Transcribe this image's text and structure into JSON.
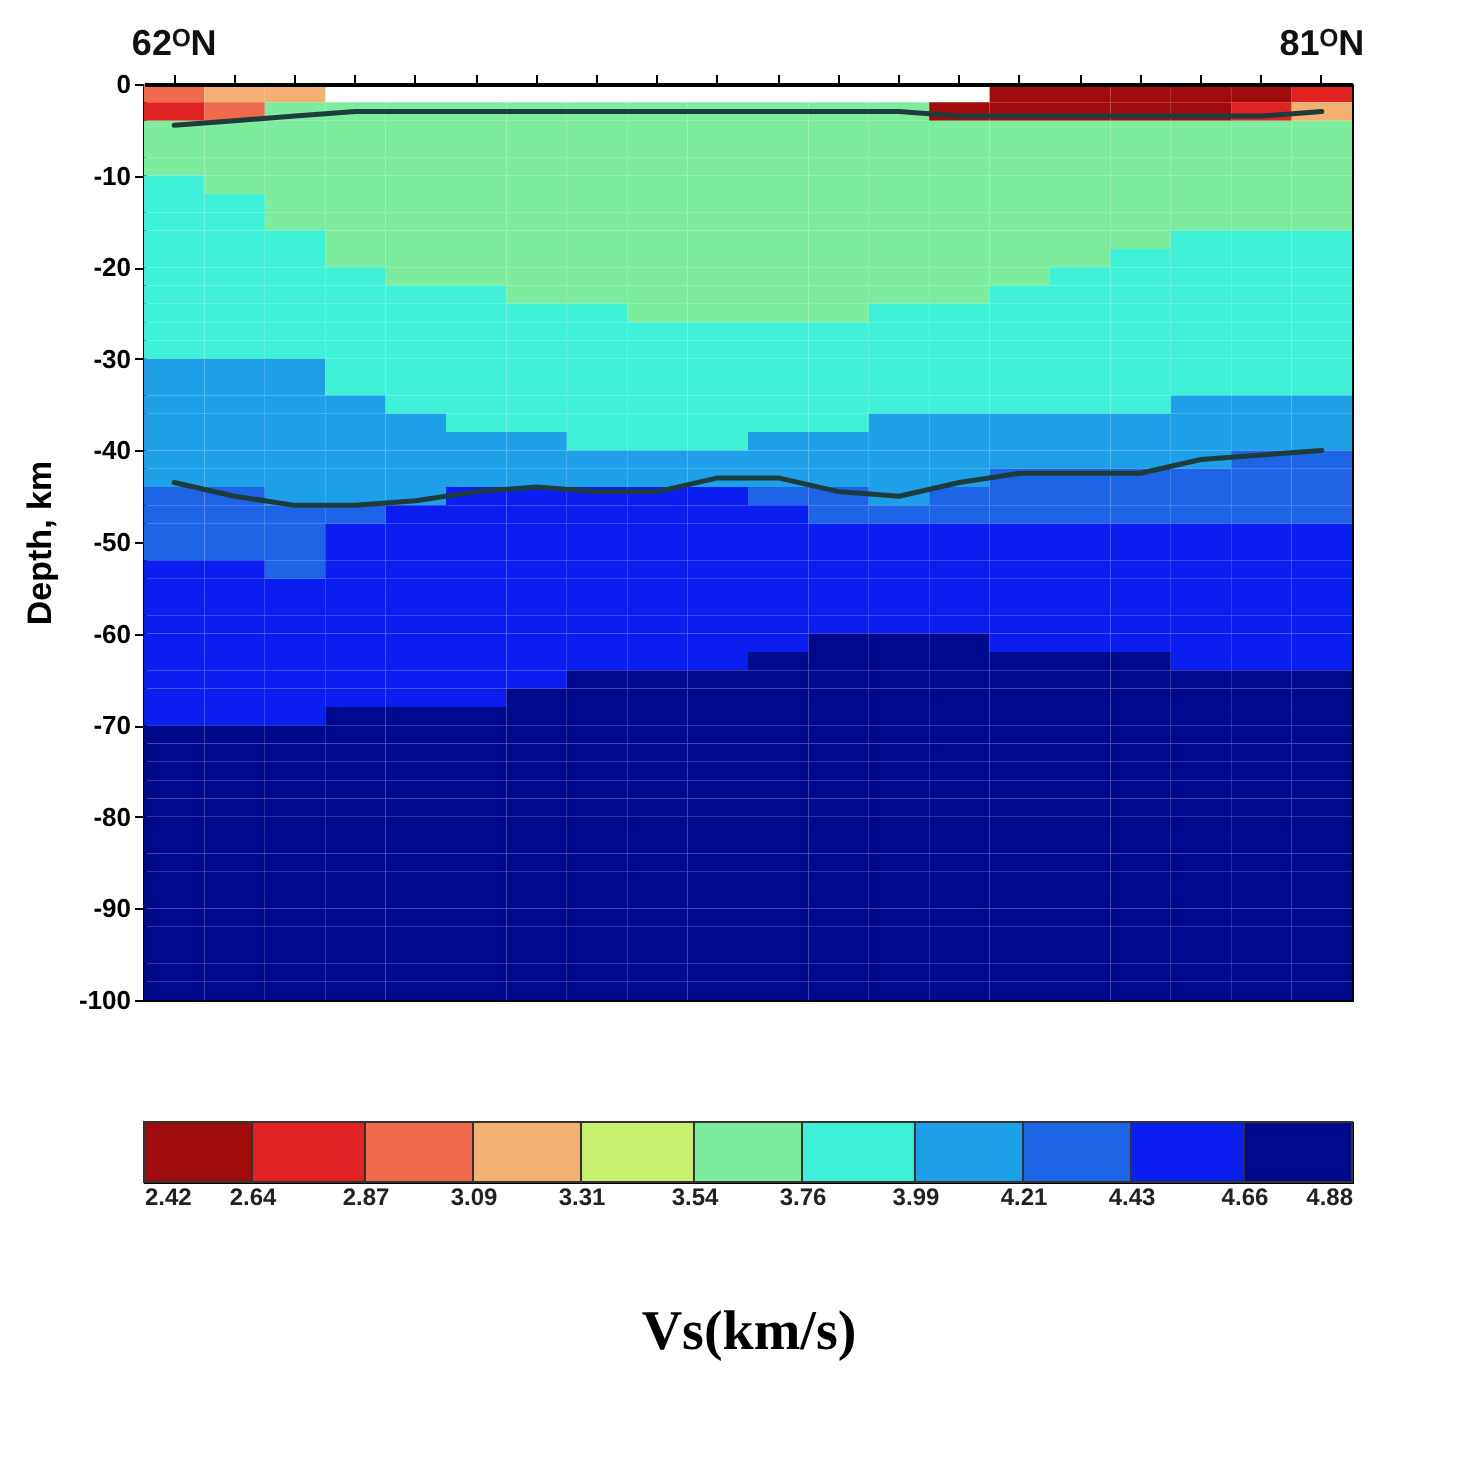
{
  "chart_data": {
    "type": "heatmap",
    "categories": [
      "62ᴼN",
      null,
      null,
      null,
      null,
      null,
      null,
      null,
      null,
      null,
      null,
      null,
      null,
      null,
      null,
      null,
      null,
      null,
      null,
      "81ᴼN"
    ],
    "ylabel": "Depth, km",
    "ylim": [
      -100,
      0
    ],
    "yticks": [
      0,
      -10,
      -20,
      -30,
      -40,
      -50,
      -60,
      -70,
      -80,
      -90,
      -100
    ],
    "clabel": "Vs(km/s)",
    "clim": [
      2.42,
      4.88
    ],
    "cticks": [
      2.42,
      2.64,
      2.87,
      3.09,
      3.31,
      3.54,
      3.76,
      3.99,
      4.21,
      4.43,
      4.66,
      4.88
    ],
    "colors": [
      "#a00c0c",
      "#e02222",
      "#ef6a4c",
      "#f4b070",
      "#c8f070",
      "#7ded9d",
      "#3ef0d5",
      "#1ea0e8",
      "#1e64e6",
      "#0a1ef0",
      "#000a8c"
    ],
    "cells": [
      [
        2.98,
        3.2,
        3.2,
        null,
        null,
        null,
        null,
        null,
        null,
        null,
        null,
        null,
        null,
        null,
        2.53,
        2.53,
        2.53,
        2.53,
        2.53,
        2.76
      ],
      [
        2.76,
        2.98,
        3.65,
        3.65,
        3.65,
        3.65,
        3.65,
        3.65,
        3.65,
        3.65,
        3.65,
        3.65,
        3.65,
        2.53,
        2.53,
        2.53,
        2.53,
        2.53,
        2.76,
        3.2
      ],
      [
        3.65,
        3.65,
        3.65,
        3.65,
        3.65,
        3.65,
        3.65,
        3.65,
        3.65,
        3.65,
        3.65,
        3.65,
        3.65,
        3.65,
        3.65,
        3.65,
        3.65,
        3.65,
        3.65,
        3.65
      ],
      [
        3.65,
        3.65,
        3.65,
        3.65,
        3.65,
        3.65,
        3.65,
        3.65,
        3.65,
        3.65,
        3.65,
        3.65,
        3.65,
        3.65,
        3.65,
        3.65,
        3.65,
        3.65,
        3.65,
        3.65
      ],
      [
        3.65,
        3.65,
        3.65,
        3.65,
        3.65,
        3.65,
        3.65,
        3.65,
        3.65,
        3.65,
        3.65,
        3.65,
        3.65,
        3.65,
        3.65,
        3.65,
        3.65,
        3.65,
        3.65,
        3.65
      ],
      [
        3.88,
        3.65,
        3.65,
        3.65,
        3.65,
        3.65,
        3.65,
        3.65,
        3.65,
        3.65,
        3.65,
        3.65,
        3.65,
        3.65,
        3.65,
        3.65,
        3.65,
        3.65,
        3.65,
        3.65
      ],
      [
        3.88,
        3.88,
        3.65,
        3.65,
        3.65,
        3.65,
        3.65,
        3.65,
        3.65,
        3.65,
        3.65,
        3.65,
        3.65,
        3.65,
        3.65,
        3.65,
        3.65,
        3.65,
        3.65,
        3.65
      ],
      [
        3.88,
        3.88,
        3.65,
        3.65,
        3.65,
        3.65,
        3.65,
        3.65,
        3.65,
        3.65,
        3.65,
        3.65,
        3.65,
        3.65,
        3.65,
        3.65,
        3.65,
        3.65,
        3.65,
        3.65
      ],
      [
        3.88,
        3.88,
        3.88,
        3.65,
        3.65,
        3.65,
        3.65,
        3.65,
        3.65,
        3.65,
        3.65,
        3.65,
        3.65,
        3.65,
        3.65,
        3.65,
        3.65,
        3.88,
        3.88,
        3.88
      ],
      [
        3.88,
        3.88,
        3.88,
        3.65,
        3.65,
        3.65,
        3.65,
        3.65,
        3.65,
        3.65,
        3.65,
        3.65,
        3.65,
        3.65,
        3.65,
        3.65,
        3.88,
        3.88,
        3.88,
        3.88
      ],
      [
        3.88,
        3.88,
        3.88,
        3.88,
        3.65,
        3.65,
        3.65,
        3.65,
        3.65,
        3.65,
        3.65,
        3.65,
        3.65,
        3.65,
        3.65,
        3.88,
        3.88,
        3.88,
        3.88,
        3.88
      ],
      [
        3.88,
        3.88,
        3.88,
        3.88,
        3.88,
        3.88,
        3.65,
        3.65,
        3.65,
        3.65,
        3.65,
        3.65,
        3.65,
        3.65,
        3.88,
        3.88,
        3.88,
        3.88,
        3.88,
        3.88
      ],
      [
        3.88,
        3.88,
        3.88,
        3.88,
        3.88,
        3.88,
        3.88,
        3.88,
        3.65,
        3.65,
        3.65,
        3.65,
        3.88,
        3.88,
        3.88,
        3.88,
        3.88,
        3.88,
        3.88,
        3.88
      ],
      [
        3.88,
        3.88,
        3.88,
        3.88,
        3.88,
        3.88,
        3.88,
        3.88,
        3.88,
        3.88,
        3.88,
        3.88,
        3.88,
        3.88,
        3.88,
        3.88,
        3.88,
        3.88,
        3.88,
        3.88
      ],
      [
        3.88,
        3.88,
        3.88,
        3.88,
        3.88,
        3.88,
        3.88,
        3.88,
        3.88,
        3.88,
        3.88,
        3.88,
        3.88,
        3.88,
        3.88,
        3.88,
        3.88,
        3.88,
        3.88,
        3.88
      ],
      [
        4.1,
        4.1,
        4.1,
        3.88,
        3.88,
        3.88,
        3.88,
        3.88,
        3.88,
        3.88,
        3.88,
        3.88,
        3.88,
        3.88,
        3.88,
        3.88,
        3.88,
        3.88,
        3.88,
        3.88
      ],
      [
        4.1,
        4.1,
        4.1,
        3.88,
        3.88,
        3.88,
        3.88,
        3.88,
        3.88,
        3.88,
        3.88,
        3.88,
        3.88,
        3.88,
        3.88,
        3.88,
        3.88,
        3.88,
        3.88,
        3.88
      ],
      [
        4.1,
        4.1,
        4.1,
        4.1,
        3.88,
        3.88,
        3.88,
        3.88,
        3.88,
        3.88,
        3.88,
        3.88,
        3.88,
        3.88,
        3.88,
        3.88,
        3.88,
        4.1,
        4.1,
        4.1
      ],
      [
        4.1,
        4.1,
        4.1,
        4.1,
        4.1,
        3.88,
        3.88,
        3.88,
        3.88,
        3.88,
        3.88,
        3.88,
        4.1,
        4.1,
        4.1,
        4.1,
        4.1,
        4.1,
        4.1,
        4.1
      ],
      [
        4.1,
        4.1,
        4.1,
        4.1,
        4.1,
        4.1,
        4.1,
        3.88,
        3.88,
        3.88,
        4.1,
        4.1,
        4.1,
        4.1,
        4.1,
        4.1,
        4.1,
        4.1,
        4.1,
        4.1
      ],
      [
        4.1,
        4.1,
        4.1,
        4.1,
        4.1,
        4.1,
        4.1,
        4.1,
        4.1,
        4.1,
        4.1,
        4.1,
        4.1,
        4.1,
        4.1,
        4.1,
        4.1,
        4.1,
        4.32,
        4.32
      ],
      [
        4.1,
        4.1,
        4.1,
        4.1,
        4.1,
        4.1,
        4.1,
        4.1,
        4.1,
        4.1,
        4.1,
        4.1,
        4.1,
        4.1,
        4.32,
        4.32,
        4.32,
        4.32,
        4.32,
        4.32
      ],
      [
        4.32,
        4.32,
        4.1,
        4.1,
        4.1,
        4.55,
        4.55,
        4.55,
        4.55,
        4.55,
        4.32,
        4.32,
        4.1,
        4.32,
        4.32,
        4.32,
        4.32,
        4.32,
        4.32,
        4.32
      ],
      [
        4.32,
        4.32,
        4.32,
        4.32,
        4.55,
        4.55,
        4.55,
        4.55,
        4.55,
        4.55,
        4.55,
        4.32,
        4.32,
        4.32,
        4.32,
        4.32,
        4.32,
        4.32,
        4.32,
        4.32
      ],
      [
        4.32,
        4.32,
        4.32,
        4.55,
        4.55,
        4.55,
        4.55,
        4.55,
        4.55,
        4.55,
        4.55,
        4.55,
        4.55,
        4.55,
        4.55,
        4.55,
        4.55,
        4.55,
        4.55,
        4.55
      ],
      [
        4.32,
        4.32,
        4.32,
        4.55,
        4.55,
        4.55,
        4.55,
        4.55,
        4.55,
        4.55,
        4.55,
        4.55,
        4.55,
        4.55,
        4.55,
        4.55,
        4.55,
        4.55,
        4.55,
        4.55
      ],
      [
        4.55,
        4.55,
        4.32,
        4.55,
        4.55,
        4.55,
        4.55,
        4.55,
        4.55,
        4.55,
        4.55,
        4.55,
        4.55,
        4.55,
        4.55,
        4.55,
        4.55,
        4.55,
        4.55,
        4.55
      ],
      [
        4.55,
        4.55,
        4.55,
        4.55,
        4.55,
        4.55,
        4.55,
        4.55,
        4.55,
        4.55,
        4.55,
        4.55,
        4.55,
        4.55,
        4.55,
        4.55,
        4.55,
        4.55,
        4.55,
        4.55
      ],
      [
        4.55,
        4.55,
        4.55,
        4.55,
        4.55,
        4.55,
        4.55,
        4.55,
        4.55,
        4.55,
        4.55,
        4.55,
        4.55,
        4.55,
        4.55,
        4.55,
        4.55,
        4.55,
        4.55,
        4.55
      ],
      [
        4.55,
        4.55,
        4.55,
        4.55,
        4.55,
        4.55,
        4.55,
        4.55,
        4.55,
        4.55,
        4.55,
        4.55,
        4.55,
        4.55,
        4.55,
        4.55,
        4.55,
        4.55,
        4.55,
        4.55
      ],
      [
        4.55,
        4.55,
        4.55,
        4.55,
        4.55,
        4.55,
        4.55,
        4.55,
        4.55,
        4.55,
        4.55,
        4.77,
        4.77,
        4.77,
        4.55,
        4.55,
        4.55,
        4.55,
        4.55,
        4.55
      ],
      [
        4.55,
        4.55,
        4.55,
        4.55,
        4.55,
        4.55,
        4.55,
        4.55,
        4.55,
        4.55,
        4.77,
        4.77,
        4.77,
        4.77,
        4.77,
        4.77,
        4.77,
        4.55,
        4.55,
        4.55
      ],
      [
        4.55,
        4.55,
        4.55,
        4.55,
        4.55,
        4.55,
        4.55,
        4.77,
        4.77,
        4.77,
        4.77,
        4.77,
        4.77,
        4.77,
        4.77,
        4.77,
        4.77,
        4.77,
        4.77,
        4.77
      ],
      [
        4.55,
        4.55,
        4.55,
        4.55,
        4.55,
        4.55,
        4.77,
        4.77,
        4.77,
        4.77,
        4.77,
        4.77,
        4.77,
        4.77,
        4.77,
        4.77,
        4.77,
        4.77,
        4.77,
        4.77
      ],
      [
        4.55,
        4.55,
        4.55,
        4.77,
        4.77,
        4.77,
        4.77,
        4.77,
        4.77,
        4.77,
        4.77,
        4.77,
        4.77,
        4.77,
        4.77,
        4.77,
        4.77,
        4.77,
        4.77,
        4.77
      ],
      [
        4.77,
        4.77,
        4.77,
        4.77,
        4.77,
        4.77,
        4.77,
        4.77,
        4.77,
        4.77,
        4.77,
        4.77,
        4.77,
        4.77,
        4.77,
        4.77,
        4.77,
        4.77,
        4.77,
        4.77
      ],
      [
        4.77,
        4.77,
        4.77,
        4.77,
        4.77,
        4.77,
        4.77,
        4.77,
        4.77,
        4.77,
        4.77,
        4.77,
        4.77,
        4.77,
        4.77,
        4.77,
        4.77,
        4.77,
        4.77,
        4.77
      ],
      [
        4.77,
        4.77,
        4.77,
        4.77,
        4.77,
        4.77,
        4.77,
        4.77,
        4.77,
        4.77,
        4.77,
        4.77,
        4.77,
        4.77,
        4.77,
        4.77,
        4.77,
        4.77,
        4.77,
        4.77
      ],
      [
        4.77,
        4.77,
        4.77,
        4.77,
        4.77,
        4.77,
        4.77,
        4.77,
        4.77,
        4.77,
        4.77,
        4.77,
        4.77,
        4.77,
        4.77,
        4.77,
        4.77,
        4.77,
        4.77,
        4.77
      ],
      [
        4.77,
        4.77,
        4.77,
        4.77,
        4.77,
        4.77,
        4.77,
        4.77,
        4.77,
        4.77,
        4.77,
        4.77,
        4.77,
        4.77,
        4.77,
        4.77,
        4.77,
        4.77,
        4.77,
        4.77
      ],
      [
        4.77,
        4.77,
        4.77,
        4.77,
        4.77,
        4.77,
        4.77,
        4.77,
        4.77,
        4.77,
        4.77,
        4.77,
        4.77,
        4.77,
        4.77,
        4.77,
        4.77,
        4.77,
        4.77,
        4.77
      ],
      [
        4.77,
        4.77,
        4.77,
        4.77,
        4.77,
        4.77,
        4.77,
        4.77,
        4.77,
        4.77,
        4.77,
        4.77,
        4.77,
        4.77,
        4.77,
        4.77,
        4.77,
        4.77,
        4.77,
        4.77
      ],
      [
        4.77,
        4.77,
        4.77,
        4.77,
        4.77,
        4.77,
        4.77,
        4.77,
        4.77,
        4.77,
        4.77,
        4.77,
        4.77,
        4.77,
        4.77,
        4.77,
        4.77,
        4.77,
        4.77,
        4.77
      ],
      [
        4.77,
        4.77,
        4.77,
        4.77,
        4.77,
        4.77,
        4.77,
        4.77,
        4.77,
        4.77,
        4.77,
        4.77,
        4.77,
        4.77,
        4.77,
        4.77,
        4.77,
        4.77,
        4.77,
        4.77
      ],
      [
        4.77,
        4.77,
        4.77,
        4.77,
        4.77,
        4.77,
        4.77,
        4.77,
        4.77,
        4.77,
        4.77,
        4.77,
        4.77,
        4.77,
        4.77,
        4.77,
        4.77,
        4.77,
        4.77,
        4.77
      ],
      [
        4.77,
        4.77,
        4.77,
        4.77,
        4.77,
        4.77,
        4.77,
        4.77,
        4.77,
        4.77,
        4.77,
        4.77,
        4.77,
        4.77,
        4.77,
        4.77,
        4.77,
        4.77,
        4.77,
        4.77
      ],
      [
        4.77,
        4.77,
        4.77,
        4.77,
        4.77,
        4.77,
        4.77,
        4.77,
        4.77,
        4.77,
        4.77,
        4.77,
        4.77,
        4.77,
        4.77,
        4.77,
        4.77,
        4.77,
        4.77,
        4.77
      ],
      [
        4.77,
        4.77,
        4.77,
        4.77,
        4.77,
        4.77,
        4.77,
        4.77,
        4.77,
        4.77,
        4.77,
        4.77,
        4.77,
        4.77,
        4.77,
        4.77,
        4.77,
        4.77,
        4.77,
        4.77
      ],
      [
        4.77,
        4.77,
        4.77,
        4.77,
        4.77,
        4.77,
        4.77,
        4.77,
        4.77,
        4.77,
        4.77,
        4.77,
        4.77,
        4.77,
        4.77,
        4.77,
        4.77,
        4.77,
        4.77,
        4.77
      ],
      [
        4.77,
        4.77,
        4.77,
        4.77,
        4.77,
        4.77,
        4.77,
        4.77,
        4.77,
        4.77,
        4.77,
        4.77,
        4.77,
        4.77,
        4.77,
        4.77,
        4.77,
        4.77,
        4.77,
        4.77
      ]
    ],
    "series": [
      {
        "type": "line",
        "color": "#1e3c3c",
        "values": [
          -4.5,
          -4,
          -3.5,
          -3,
          -3,
          -3,
          -3,
          -3,
          -3,
          -3,
          -3,
          -3,
          -3,
          -3.5,
          -3.5,
          -3.5,
          -3.5,
          -3.5,
          -3.5,
          -3
        ]
      },
      {
        "type": "line",
        "color": "#1e3c3c",
        "values": [
          -43.5,
          -45,
          -46,
          -46,
          -45.5,
          -44.5,
          -44,
          -44.5,
          -44.5,
          -43,
          -43,
          -44.5,
          -45,
          -43.5,
          -42.5,
          -42.5,
          -42.5,
          -41,
          -40.5,
          -40
        ]
      }
    ]
  }
}
